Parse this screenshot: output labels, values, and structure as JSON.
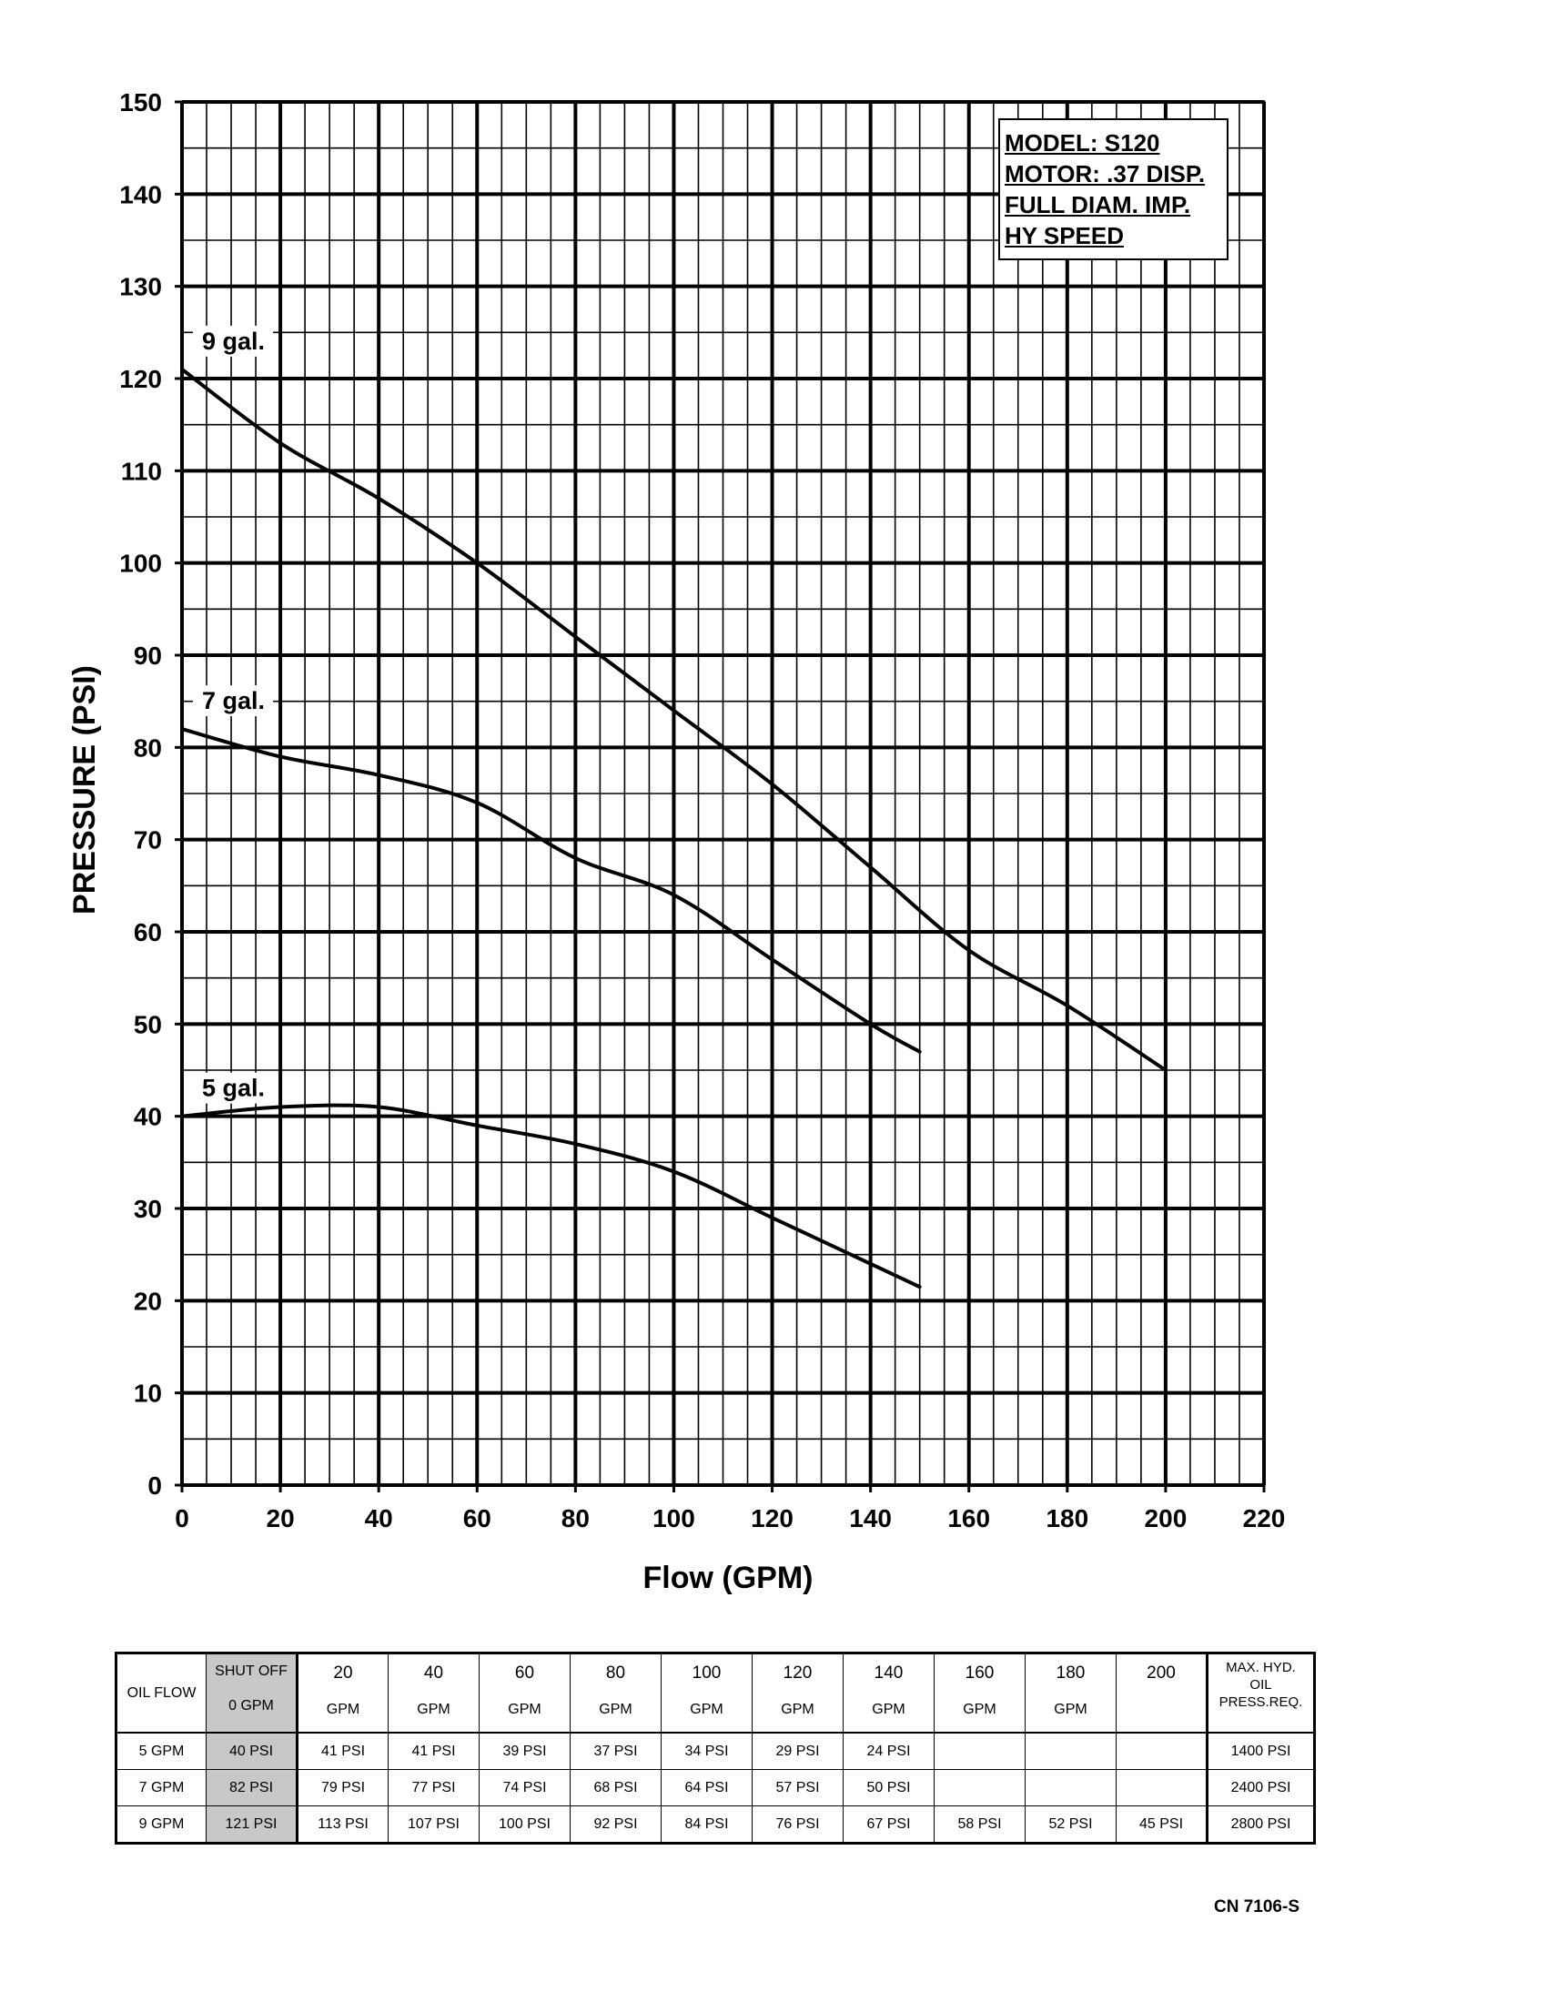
{
  "chart_data": {
    "type": "line",
    "xlabel": "Flow (GPM)",
    "ylabel": "PRESSURE (PSI)",
    "xlim": [
      0,
      220
    ],
    "ylim": [
      0,
      150
    ],
    "x_ticks": [
      "0",
      "20",
      "40",
      "60",
      "80",
      "100",
      "120",
      "140",
      "160",
      "180",
      "200",
      "220"
    ],
    "y_ticks": [
      "0",
      "10",
      "20",
      "30",
      "40",
      "50",
      "60",
      "70",
      "80",
      "90",
      "100",
      "110",
      "120",
      "130",
      "140",
      "150"
    ],
    "grid": true,
    "series": [
      {
        "name": "9 gal.",
        "x": [
          0,
          20,
          40,
          60,
          80,
          100,
          120,
          140,
          160,
          180,
          200
        ],
        "y": [
          121,
          113,
          107,
          100,
          92,
          84,
          76,
          67,
          58,
          52,
          45
        ]
      },
      {
        "name": "7 gal.",
        "x": [
          0,
          20,
          40,
          60,
          80,
          100,
          120,
          140,
          150
        ],
        "y": [
          82,
          79,
          77,
          74,
          68,
          64,
          57,
          50,
          47
        ]
      },
      {
        "name": "5 gal.",
        "x": [
          0,
          20,
          40,
          60,
          80,
          100,
          120,
          140,
          150
        ],
        "y": [
          40,
          41,
          41,
          39,
          37,
          34,
          29,
          24,
          21.5
        ]
      }
    ]
  },
  "model_box": [
    "MODEL: S120",
    "MOTOR: .37 DISP.",
    "FULL DIAM. IMP.",
    "HY SPEED"
  ],
  "table": {
    "corner": "OIL FLOW",
    "columns": [
      {
        "top": "SHUT OFF",
        "bottom": "0 GPM"
      },
      {
        "top": "20",
        "bottom": "GPM"
      },
      {
        "top": "40",
        "bottom": "GPM"
      },
      {
        "top": "60",
        "bottom": "GPM"
      },
      {
        "top": "80",
        "bottom": "GPM"
      },
      {
        "top": "100",
        "bottom": "GPM"
      },
      {
        "top": "120",
        "bottom": "GPM"
      },
      {
        "top": "140",
        "bottom": "GPM"
      },
      {
        "top": "160",
        "bottom": "GPM"
      },
      {
        "top": "180",
        "bottom": "GPM"
      },
      {
        "top": "200",
        "bottom": ""
      }
    ],
    "last_header": [
      "MAX. HYD.",
      "OIL",
      "PRESS.REQ."
    ],
    "rows": [
      {
        "label": "5 GPM",
        "cells": [
          "40 PSI",
          "41 PSI",
          "41 PSI",
          "39 PSI",
          "37 PSI",
          "34 PSI",
          "29 PSI",
          "24 PSI",
          "",
          "",
          ""
        ],
        "max": "1400 PSI"
      },
      {
        "label": "7 GPM",
        "cells": [
          "82 PSI",
          "79 PSI",
          "77 PSI",
          "74 PSI",
          "68 PSI",
          "64 PSI",
          "57 PSI",
          "50 PSI",
          "",
          "",
          ""
        ],
        "max": "2400 PSI"
      },
      {
        "label": "9 GPM",
        "cells": [
          "121 PSI",
          "113 PSI",
          "107 PSI",
          "100 PSI",
          "92 PSI",
          "84 PSI",
          "76 PSI",
          "67 PSI",
          "58 PSI",
          "52 PSI",
          "45 PSI"
        ],
        "max": "2800 PSI"
      }
    ]
  },
  "footer_code": "CN 7106-S"
}
